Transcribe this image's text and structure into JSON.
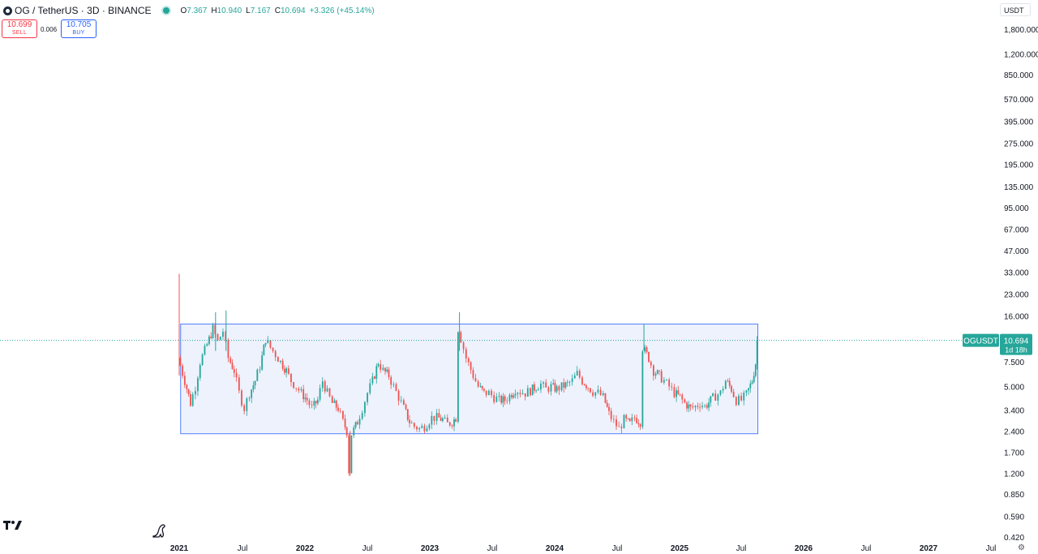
{
  "header": {
    "title": "OG / TetherUS · 3D · BINANCE",
    "open_label": "O",
    "open": "7.367",
    "high_label": "H",
    "high": "10.940",
    "low_label": "L",
    "low": "7.167",
    "close_label": "C",
    "close": "10.694",
    "change": "+3.326 (+45.14%)"
  },
  "trade": {
    "sell_price": "10.699",
    "sell_label": "SELL",
    "spread": "0.006",
    "buy_price": "10.705",
    "buy_label": "BUY"
  },
  "axis": {
    "currency": "USDT",
    "price_ticks": [
      "1,800.000",
      "1,200.000",
      "850.000",
      "570.000",
      "395.000",
      "275.000",
      "195.000",
      "135.000",
      "95.000",
      "67.000",
      "47.000",
      "33.000",
      "23.000",
      "16.000",
      "7.500",
      "5.000",
      "3.400",
      "2.400",
      "1.700",
      "1.200",
      "0.850",
      "0.590",
      "0.420"
    ],
    "time_ticks": [
      "2021",
      "Jul",
      "2022",
      "Jul",
      "2023",
      "Jul",
      "2024",
      "Jul",
      "2025",
      "Jul",
      "2026",
      "Jul",
      "2027",
      "Jul"
    ]
  },
  "price_label": {
    "symbol": "OGUSDT",
    "price": "10.694",
    "countdown": "1d 18h"
  },
  "colors": {
    "up": "#26a69a",
    "down": "#ef5350",
    "rect_border": "#2962ff",
    "rect_fill": "#eaf0fd",
    "price_line": "#26a69a"
  },
  "icons": [
    "tradingview-logo-icon",
    "dino-icon",
    "settings-icon",
    "coin-icon"
  ],
  "chart_data": {
    "type": "candlestick",
    "scale": "log",
    "ylim": [
      0.42,
      1800
    ],
    "xlim": [
      "2021-01-01",
      "2027-12-31"
    ],
    "series": [
      {
        "name": "OGUSDT",
        "points": [
          [
            "2021-01-01",
            8.0
          ],
          [
            "2021-01-20",
            5.5
          ],
          [
            "2021-02-05",
            3.8
          ],
          [
            "2021-02-20",
            5.0
          ],
          [
            "2021-03-05",
            7.5
          ],
          [
            "2021-03-25",
            10.0
          ],
          [
            "2021-04-10",
            13.0
          ],
          [
            "2021-04-25",
            10.5
          ],
          [
            "2021-05-10",
            12.5
          ],
          [
            "2021-05-25",
            8.0
          ],
          [
            "2021-06-10",
            6.5
          ],
          [
            "2021-06-25",
            4.5
          ],
          [
            "2021-07-10",
            3.5
          ],
          [
            "2021-07-25",
            4.5
          ],
          [
            "2021-08-10",
            5.5
          ],
          [
            "2021-08-25",
            7.0
          ],
          [
            "2021-09-10",
            11.0
          ],
          [
            "2021-09-25",
            9.5
          ],
          [
            "2021-10-10",
            8.5
          ],
          [
            "2021-10-25",
            7.5
          ],
          [
            "2021-11-10",
            6.5
          ],
          [
            "2021-11-25",
            5.5
          ],
          [
            "2021-12-10",
            5.0
          ],
          [
            "2021-12-25",
            4.5
          ],
          [
            "2022-01-10",
            4.0
          ],
          [
            "2022-01-25",
            3.5
          ],
          [
            "2022-02-10",
            4.0
          ],
          [
            "2022-02-25",
            5.5
          ],
          [
            "2022-03-10",
            4.5
          ],
          [
            "2022-03-25",
            3.8
          ],
          [
            "2022-04-10",
            3.5
          ],
          [
            "2022-04-25",
            2.8
          ],
          [
            "2022-05-05",
            2.4
          ],
          [
            "2022-05-12",
            1.25
          ],
          [
            "2022-05-20",
            2.3
          ],
          [
            "2022-06-05",
            2.8
          ],
          [
            "2022-06-20",
            3.5
          ],
          [
            "2022-07-05",
            4.5
          ],
          [
            "2022-07-20",
            5.5
          ],
          [
            "2022-08-05",
            7.5
          ],
          [
            "2022-08-20",
            6.5
          ],
          [
            "2022-09-05",
            6.0
          ],
          [
            "2022-09-20",
            5.0
          ],
          [
            "2022-10-05",
            4.2
          ],
          [
            "2022-10-20",
            3.5
          ],
          [
            "2022-11-05",
            2.8
          ],
          [
            "2022-11-20",
            2.6
          ],
          [
            "2022-12-05",
            2.5
          ],
          [
            "2022-12-20",
            2.6
          ],
          [
            "2023-01-10",
            3.0
          ],
          [
            "2023-01-25",
            3.0
          ],
          [
            "2023-02-10",
            2.9
          ],
          [
            "2023-02-25",
            2.7
          ],
          [
            "2023-03-10",
            2.8
          ],
          [
            "2023-03-20",
            3.0
          ],
          [
            "2023-03-28",
            13.0
          ],
          [
            "2023-04-05",
            11.0
          ],
          [
            "2023-04-20",
            8.0
          ],
          [
            "2023-05-10",
            6.0
          ],
          [
            "2023-05-25",
            5.0
          ],
          [
            "2023-06-10",
            4.5
          ],
          [
            "2023-06-25",
            4.5
          ],
          [
            "2023-07-10",
            4.2
          ],
          [
            "2023-07-25",
            4.0
          ],
          [
            "2023-08-10",
            4.0
          ],
          [
            "2023-08-25",
            4.3
          ],
          [
            "2023-09-10",
            4.8
          ],
          [
            "2023-09-25",
            4.6
          ],
          [
            "2023-10-10",
            4.5
          ],
          [
            "2023-10-25",
            4.7
          ],
          [
            "2023-11-10",
            5.0
          ],
          [
            "2023-11-25",
            5.2
          ],
          [
            "2023-12-10",
            4.8
          ],
          [
            "2023-12-25",
            5.0
          ],
          [
            "2024-01-10",
            4.8
          ],
          [
            "2024-01-25",
            5.0
          ],
          [
            "2024-02-10",
            5.2
          ],
          [
            "2024-02-25",
            5.5
          ],
          [
            "2024-03-10",
            6.2
          ],
          [
            "2024-03-25",
            5.5
          ],
          [
            "2024-04-10",
            5.0
          ],
          [
            "2024-04-25",
            4.6
          ],
          [
            "2024-05-10",
            4.5
          ],
          [
            "2024-05-25",
            4.2
          ],
          [
            "2024-06-10",
            3.2
          ],
          [
            "2024-06-25",
            2.8
          ],
          [
            "2024-07-10",
            2.5
          ],
          [
            "2024-07-25",
            2.9
          ],
          [
            "2024-08-10",
            2.7
          ],
          [
            "2024-08-25",
            3.0
          ],
          [
            "2024-09-10",
            2.8
          ],
          [
            "2024-09-18",
            9.5
          ],
          [
            "2024-10-05",
            8.0
          ],
          [
            "2024-10-20",
            6.5
          ],
          [
            "2024-11-05",
            6.0
          ],
          [
            "2024-11-20",
            5.5
          ],
          [
            "2024-12-05",
            5.0
          ],
          [
            "2024-12-20",
            4.5
          ],
          [
            "2025-01-05",
            4.2
          ],
          [
            "2025-01-20",
            3.8
          ],
          [
            "2025-02-05",
            3.5
          ],
          [
            "2025-02-20",
            3.6
          ],
          [
            "2025-03-05",
            3.8
          ],
          [
            "2025-03-20",
            3.6
          ],
          [
            "2025-04-05",
            4.0
          ],
          [
            "2025-04-20",
            4.3
          ],
          [
            "2025-05-05",
            4.5
          ],
          [
            "2025-05-20",
            5.5
          ],
          [
            "2025-06-05",
            4.8
          ],
          [
            "2025-06-20",
            4.0
          ],
          [
            "2025-07-05",
            4.0
          ],
          [
            "2025-07-20",
            4.4
          ],
          [
            "2025-08-05",
            5.5
          ],
          [
            "2025-08-15",
            7.367
          ],
          [
            "2025-08-19",
            10.694
          ]
        ],
        "initial_wick_high": 32.0
      }
    ],
    "rectangle": {
      "from": "2021-01-05",
      "to": "2025-08-19",
      "top": 14.0,
      "bottom": 2.3
    },
    "last_price": 10.694,
    "grid": false,
    "legend": "none"
  }
}
